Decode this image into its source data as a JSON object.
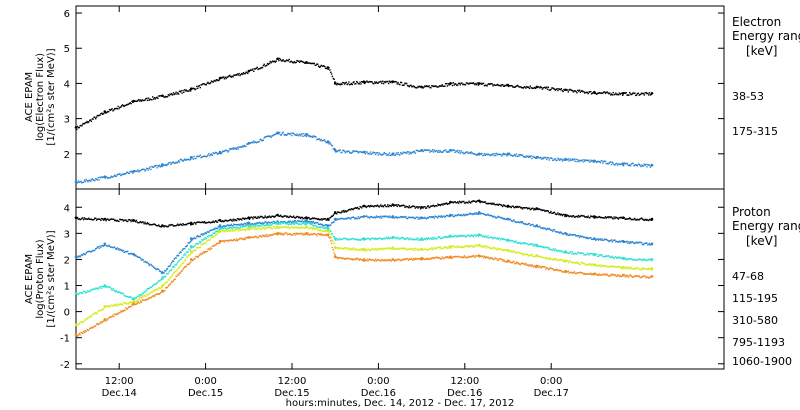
{
  "chart_data": [
    {
      "type": "scatter",
      "ylabel_lines": [
        "ACE EPAM",
        "log(Electron Flux)",
        "[1/(cm²s ster MeV)]"
      ],
      "ylim": [
        1,
        6.2
      ],
      "yticks": [
        2,
        3,
        4,
        5,
        6
      ],
      "ytick_labels": [
        "2",
        "3",
        "4",
        "5",
        "6"
      ],
      "legend_title": [
        "Electron",
        "Energy range"
      ],
      "legend_unit": "[keV]",
      "series": [
        {
          "name": "38-53",
          "color": "#000000",
          "x": [
            0,
            4,
            8,
            12,
            16,
            20,
            24,
            28,
            32,
            35,
            36,
            40,
            44,
            48,
            52,
            56,
            60,
            64,
            68,
            72,
            76,
            80
          ],
          "y": [
            2.75,
            3.2,
            3.5,
            3.65,
            3.85,
            4.15,
            4.35,
            4.7,
            4.6,
            4.45,
            4.0,
            4.05,
            4.05,
            3.9,
            4.0,
            4.0,
            3.95,
            3.9,
            3.82,
            3.75,
            3.72,
            3.72
          ]
        },
        {
          "name": "175-315",
          "color": "#2a84d2",
          "x": [
            0,
            4,
            8,
            12,
            16,
            20,
            24,
            28,
            32,
            35,
            36,
            40,
            44,
            48,
            52,
            56,
            60,
            64,
            68,
            72,
            76,
            80
          ],
          "y": [
            1.2,
            1.35,
            1.5,
            1.7,
            1.9,
            2.05,
            2.3,
            2.6,
            2.55,
            2.35,
            2.1,
            2.05,
            2.0,
            2.1,
            2.1,
            2.0,
            2.0,
            1.9,
            1.85,
            1.8,
            1.72,
            1.68
          ]
        }
      ]
    },
    {
      "type": "scatter",
      "ylabel_lines": [
        "ACE EPAM",
        "log(Proton Flux)",
        "[1/(cm²s ster MeV)]"
      ],
      "ylim": [
        -2.2,
        4.7
      ],
      "yticks": [
        -2,
        -1,
        0,
        1,
        2,
        3,
        4
      ],
      "ytick_labels": [
        "-2",
        "-1",
        "0",
        "1",
        "2",
        "3",
        "4"
      ],
      "legend_title": [
        "Proton",
        "Energy range"
      ],
      "legend_unit": "[keV]",
      "series": [
        {
          "name": "47-68",
          "color": "#000000",
          "x": [
            0,
            4,
            8,
            12,
            16,
            20,
            24,
            28,
            32,
            35,
            36,
            40,
            44,
            48,
            52,
            56,
            60,
            64,
            68,
            72,
            76,
            80
          ],
          "y": [
            3.6,
            3.55,
            3.5,
            3.3,
            3.4,
            3.5,
            3.6,
            3.7,
            3.6,
            3.55,
            3.8,
            4.05,
            4.1,
            4.0,
            4.2,
            4.25,
            4.05,
            3.95,
            3.7,
            3.65,
            3.6,
            3.55
          ]
        },
        {
          "name": "115-195",
          "color": "#2a84d2",
          "x": [
            0,
            4,
            8,
            12,
            16,
            20,
            24,
            28,
            32,
            35,
            36,
            40,
            44,
            48,
            52,
            56,
            60,
            64,
            68,
            72,
            76,
            80
          ],
          "y": [
            2.1,
            2.6,
            2.2,
            1.5,
            2.8,
            3.3,
            3.4,
            3.45,
            3.5,
            3.3,
            3.55,
            3.65,
            3.65,
            3.6,
            3.7,
            3.8,
            3.55,
            3.3,
            3.0,
            2.8,
            2.7,
            2.6
          ]
        },
        {
          "name": "310-580",
          "color": "#2de0d2",
          "x": [
            0,
            4,
            8,
            12,
            16,
            20,
            24,
            28,
            32,
            35,
            36,
            40,
            44,
            48,
            52,
            56,
            60,
            64,
            68,
            72,
            76,
            80
          ],
          "y": [
            0.7,
            1.0,
            0.5,
            1.3,
            2.5,
            3.2,
            3.3,
            3.4,
            3.4,
            3.2,
            2.8,
            2.8,
            2.85,
            2.8,
            2.9,
            2.95,
            2.75,
            2.55,
            2.3,
            2.2,
            2.05,
            2.0
          ]
        },
        {
          "name": "795-1193",
          "color": "#d4ec14",
          "x": [
            0,
            4,
            8,
            12,
            16,
            20,
            24,
            28,
            32,
            35,
            36,
            40,
            44,
            48,
            52,
            56,
            60,
            64,
            68,
            72,
            76,
            80
          ],
          "y": [
            -0.5,
            0.2,
            0.4,
            1.0,
            2.3,
            3.1,
            3.2,
            3.25,
            3.25,
            3.1,
            2.45,
            2.4,
            2.45,
            2.4,
            2.5,
            2.55,
            2.35,
            2.15,
            1.95,
            1.8,
            1.7,
            1.65
          ]
        },
        {
          "name": "1060-1900",
          "color": "#f0881e",
          "x": [
            0,
            4,
            8,
            12,
            16,
            20,
            24,
            28,
            32,
            35,
            36,
            40,
            44,
            48,
            52,
            56,
            60,
            64,
            68,
            72,
            76,
            80
          ],
          "y": [
            -0.9,
            -0.3,
            0.3,
            0.8,
            2.0,
            2.7,
            2.85,
            3.0,
            3.0,
            2.95,
            2.1,
            2.0,
            2.0,
            2.05,
            2.1,
            2.15,
            1.95,
            1.75,
            1.55,
            1.45,
            1.4,
            1.35
          ]
        }
      ]
    }
  ],
  "x_axis": {
    "ticks": [
      {
        "t": 6,
        "line1": "12:00",
        "line2": "Dec.14"
      },
      {
        "t": 18,
        "line1": "0:00",
        "line2": "Dec.15"
      },
      {
        "t": 30,
        "line1": "12:00",
        "line2": "Dec.15"
      },
      {
        "t": 42,
        "line1": "0:00",
        "line2": "Dec.16"
      },
      {
        "t": 54,
        "line1": "12:00",
        "line2": "Dec.16"
      },
      {
        "t": 66,
        "line1": "0:00",
        "line2": "Dec.17"
      }
    ],
    "xlabel": "hours:minutes, Dec. 14, 2012 - Dec. 17, 2012"
  }
}
